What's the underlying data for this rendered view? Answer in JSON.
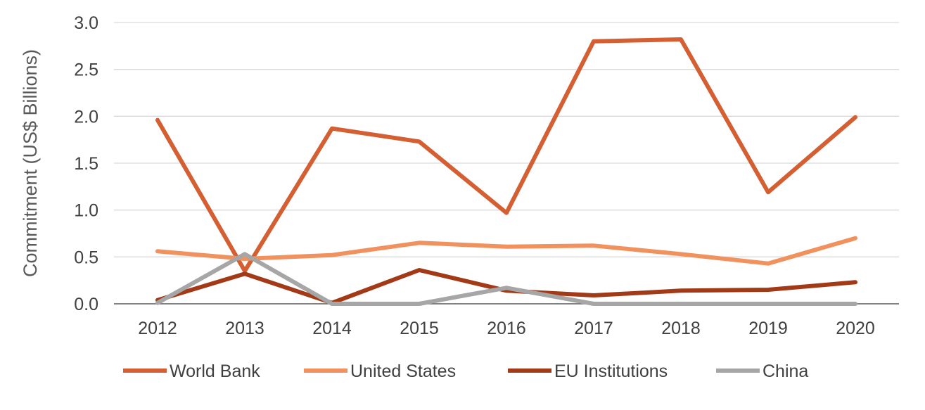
{
  "chart_data": {
    "type": "line",
    "title": "",
    "xlabel": "",
    "ylabel": "Commitment (US$ Billions)",
    "ylim": [
      0,
      3.0
    ],
    "yticks": [
      0.0,
      0.5,
      1.0,
      1.5,
      2.0,
      2.5,
      3.0
    ],
    "ytick_labels": [
      "0.0",
      "0.5",
      "1.0",
      "1.5",
      "2.0",
      "2.5",
      "3.0"
    ],
    "categories": [
      "2012",
      "2013",
      "2014",
      "2015",
      "2016",
      "2017",
      "2018",
      "2019",
      "2020"
    ],
    "grid": "horizontal",
    "legend_position": "bottom",
    "series": [
      {
        "name": "World Bank",
        "color": "#d35f33",
        "values": [
          1.96,
          0.35,
          1.87,
          1.73,
          0.97,
          2.8,
          2.82,
          1.19,
          1.99
        ]
      },
      {
        "name": "United States",
        "color": "#f0915e",
        "values": [
          0.56,
          0.48,
          0.52,
          0.65,
          0.61,
          0.62,
          0.53,
          0.43,
          0.7
        ]
      },
      {
        "name": "EU Institutions",
        "color": "#a33a17",
        "values": [
          0.04,
          0.32,
          0.01,
          0.36,
          0.14,
          0.09,
          0.14,
          0.15,
          0.23
        ]
      },
      {
        "name": "China",
        "color": "#a6a6a6",
        "values": [
          0.01,
          0.53,
          0.0,
          0.0,
          0.17,
          0.0,
          0.0,
          0.0,
          0.0
        ]
      }
    ]
  }
}
